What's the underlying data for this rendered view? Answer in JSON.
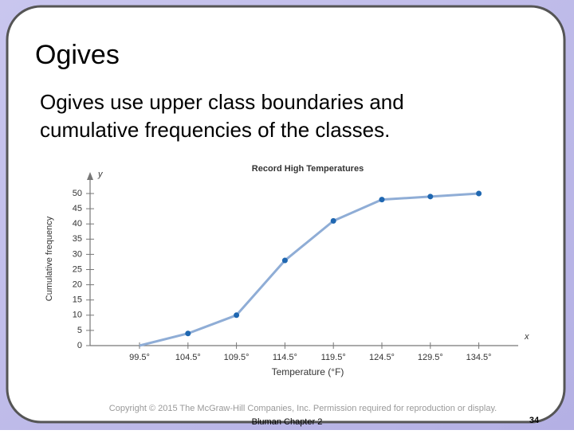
{
  "slide": {
    "title": "Ogives",
    "body": [
      "Ogives use upper class boundaries and",
      "cumulative frequencies of the classes."
    ]
  },
  "chart_data": {
    "type": "line",
    "title": "Record High Temperatures",
    "x_label": "Temperature (°F)",
    "y_label": "Cumulative frequency",
    "x_axis_name": "x",
    "y_axis_name": "y",
    "categories": [
      "99.5°",
      "104.5°",
      "109.5°",
      "114.5°",
      "119.5°",
      "124.5°",
      "129.5°",
      "134.5°"
    ],
    "values": [
      0,
      4,
      10,
      28,
      41,
      48,
      49,
      50
    ],
    "color": "#8fadd6",
    "marker_color": "#1f67b1",
    "ylim": [
      0,
      52
    ],
    "yticks": [
      0,
      5,
      10,
      15,
      20,
      25,
      30,
      35,
      40,
      45,
      50
    ],
    "grid": false
  },
  "footer": {
    "copyright": "Copyright © 2015 The McGraw-Hill Companies, Inc.  Permission required for reproduction or display.",
    "chapter": "Bluman Chapter 2",
    "page": 34
  }
}
